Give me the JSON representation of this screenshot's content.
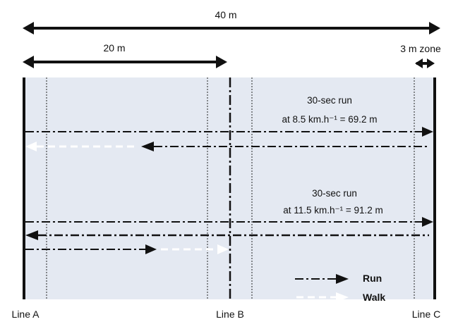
{
  "colors": {
    "field": "#e4e9f2",
    "ink": "#111111",
    "walk": "#ffffff"
  },
  "dimensions": {
    "total": "40 m",
    "half": "20 m",
    "zone": "3 m zone"
  },
  "runs": [
    {
      "line1": "30-sec run",
      "line2": "at 8.5 km.h⁻¹ = 69.2 m"
    },
    {
      "line1": "30-sec run",
      "line2": "at 11.5 km.h⁻¹ = 91.2 m"
    }
  ],
  "lines": {
    "a": "Line A",
    "b": "Line B",
    "c": "Line C"
  },
  "legend": {
    "run": "Run",
    "walk": "Walk"
  }
}
